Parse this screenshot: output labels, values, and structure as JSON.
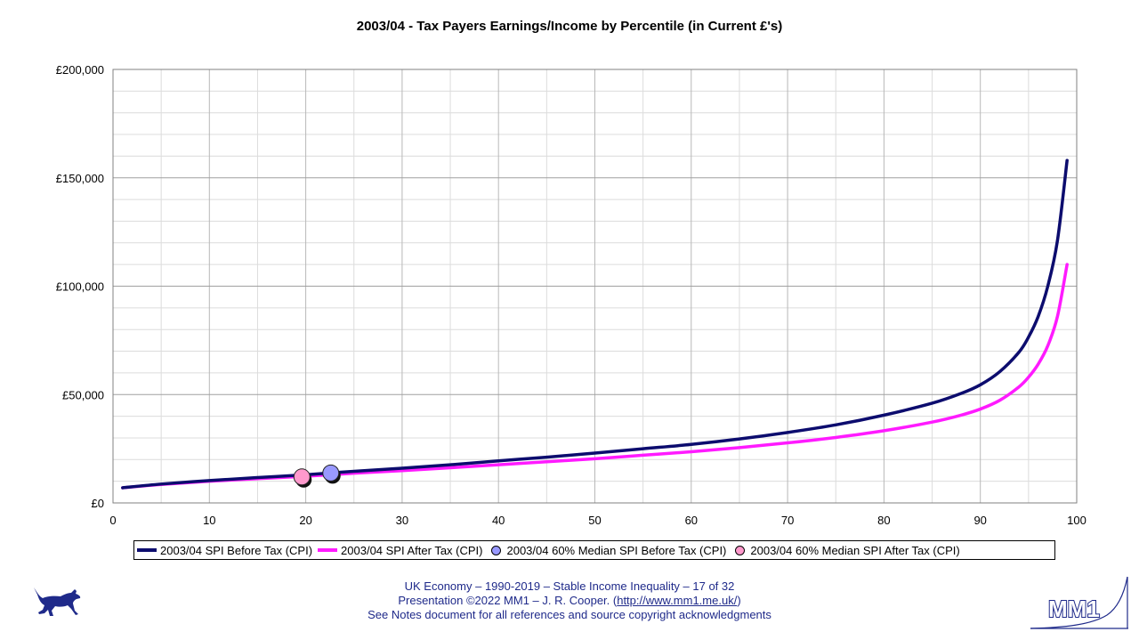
{
  "page": {
    "title": "2003/04 - Tax Payers Earnings/Income by Percentile (in Current £'s)"
  },
  "colors": {
    "before_tax": "#0c0c6e",
    "after_tax": "#ff1aff",
    "median_before": "#9999ff",
    "median_after": "#ff99cc",
    "footer_text": "#1f2a8a"
  },
  "legend": {
    "before_tax": "2003/04 SPI  Before Tax (CPI)",
    "after_tax": "2003/04 SPI After Tax (CPI)",
    "median_before": "2003/04 60% Median SPI Before Tax (CPI)",
    "median_after": "2003/04 60% Median SPI After Tax (CPI)"
  },
  "footer": {
    "line1": "UK Economy – 1990-2019 – Stable Income Inequality – 17 of 32",
    "line2_prefix": "Presentation ©2022 MM1 – J. R. Cooper. (",
    "line2_link": "http://www.mm1.me.uk/",
    "line2_suffix": ")",
    "line3": "See Notes document for all references and source copyright acknowledgments"
  },
  "logo": {
    "text": "MM1",
    "icon": "mm1-logo-icon"
  },
  "dog": {
    "icon": "running-dog-icon"
  },
  "chart_data": {
    "type": "line",
    "title": "2003/04 - Tax Payers Earnings/Income by Percentile (in Current £'s)",
    "xlabel": "",
    "ylabel": "",
    "xlim": [
      0,
      100
    ],
    "ylim": [
      0,
      200000
    ],
    "x_ticks": [
      0,
      10,
      20,
      30,
      40,
      50,
      60,
      70,
      80,
      90,
      100
    ],
    "y_ticks": [
      0,
      50000,
      100000,
      150000,
      200000
    ],
    "y_tick_labels": [
      "£0",
      "£50,000",
      "£100,000",
      "£150,000",
      "£200,000"
    ],
    "grid": true,
    "legend_position": "bottom",
    "series": [
      {
        "name": "2003/04 SPI  Before Tax (CPI)",
        "x": [
          1,
          5,
          10,
          15,
          20,
          25,
          30,
          35,
          40,
          45,
          50,
          55,
          60,
          65,
          70,
          75,
          80,
          85,
          88,
          90,
          92,
          94,
          95,
          96,
          97,
          98,
          99
        ],
        "y": [
          7000,
          8700,
          10300,
          11700,
          13000,
          14600,
          16000,
          17600,
          19400,
          21100,
          23000,
          25000,
          27000,
          29500,
          32500,
          36000,
          40500,
          46000,
          50500,
          54500,
          60500,
          69500,
          76500,
          86000,
          100000,
          121000,
          158000
        ]
      },
      {
        "name": "2003/04 SPI After Tax (CPI)",
        "x": [
          1,
          5,
          10,
          15,
          20,
          25,
          30,
          35,
          40,
          45,
          50,
          55,
          60,
          65,
          70,
          75,
          80,
          85,
          88,
          90,
          92,
          94,
          95,
          96,
          97,
          98,
          99
        ],
        "y": [
          7000,
          8500,
          10000,
          11200,
          12300,
          13700,
          14900,
          16200,
          17600,
          19000,
          20400,
          22000,
          23600,
          25500,
          27700,
          30200,
          33300,
          37300,
          40500,
          43300,
          47300,
          53500,
          58000,
          64000,
          72500,
          86000,
          110000
        ]
      },
      {
        "name": "2003/04 60% Median SPI Before Tax (CPI)",
        "type": "scatter",
        "x": [
          22.6
        ],
        "y": [
          13800
        ]
      },
      {
        "name": "2003/04 60% Median SPI After Tax (CPI)",
        "type": "scatter",
        "x": [
          19.6
        ],
        "y": [
          12000
        ]
      }
    ]
  }
}
